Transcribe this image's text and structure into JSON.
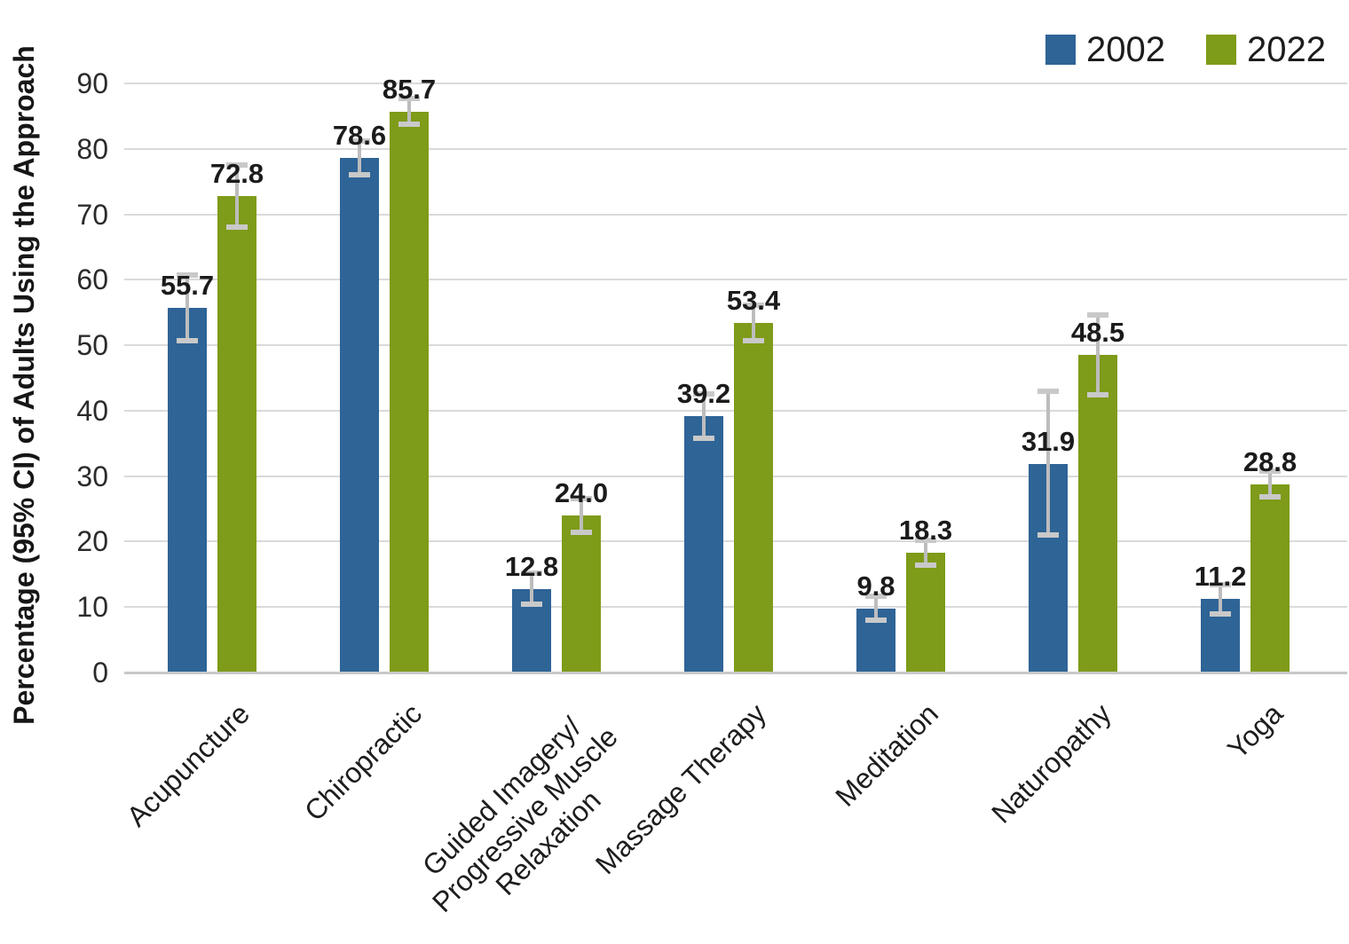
{
  "chart_data": {
    "type": "bar",
    "title": "",
    "xlabel": "",
    "ylabel": "Percentage (95% CI) of Adults Using the Approach",
    "ylim": [
      0,
      90
    ],
    "yticks": [
      0,
      10,
      20,
      30,
      40,
      50,
      60,
      70,
      80,
      90
    ],
    "grid": true,
    "legend_position": "top-right",
    "value_label_format": "one-decimal",
    "error_bars": "95% CI",
    "categories": [
      "Acupuncture",
      "Chiropractic",
      "Guided Imagery/\nProgressive Muscle\nRelaxation",
      "Massage Therapy",
      "Meditation",
      "Naturopathy",
      "Yoga"
    ],
    "series": [
      {
        "name": "2002",
        "color": "#2e6496",
        "values": [
          55.7,
          78.6,
          12.8,
          39.2,
          9.8,
          31.9,
          11.2
        ],
        "ci": [
          [
            50.7,
            60.7
          ],
          [
            76.0,
            81.2
          ],
          [
            10.4,
            15.2
          ],
          [
            35.8,
            42.6
          ],
          [
            8.0,
            11.6
          ],
          [
            21.0,
            42.9
          ],
          [
            9.0,
            13.4
          ]
        ]
      },
      {
        "name": "2022",
        "color": "#7e9b19",
        "values": [
          72.8,
          85.7,
          24.0,
          53.4,
          18.3,
          48.5,
          28.8
        ],
        "ci": [
          [
            68.1,
            77.5
          ],
          [
            83.7,
            87.7
          ],
          [
            21.4,
            26.6
          ],
          [
            50.7,
            56.1
          ],
          [
            16.4,
            20.2
          ],
          [
            42.4,
            54.6
          ],
          [
            26.8,
            30.8
          ]
        ]
      }
    ],
    "colors": {
      "gridline": "#dadada",
      "baseline": "#c8c8c8",
      "error_line": "#bdbdbd",
      "error_cap": "#c9c9c9"
    }
  }
}
